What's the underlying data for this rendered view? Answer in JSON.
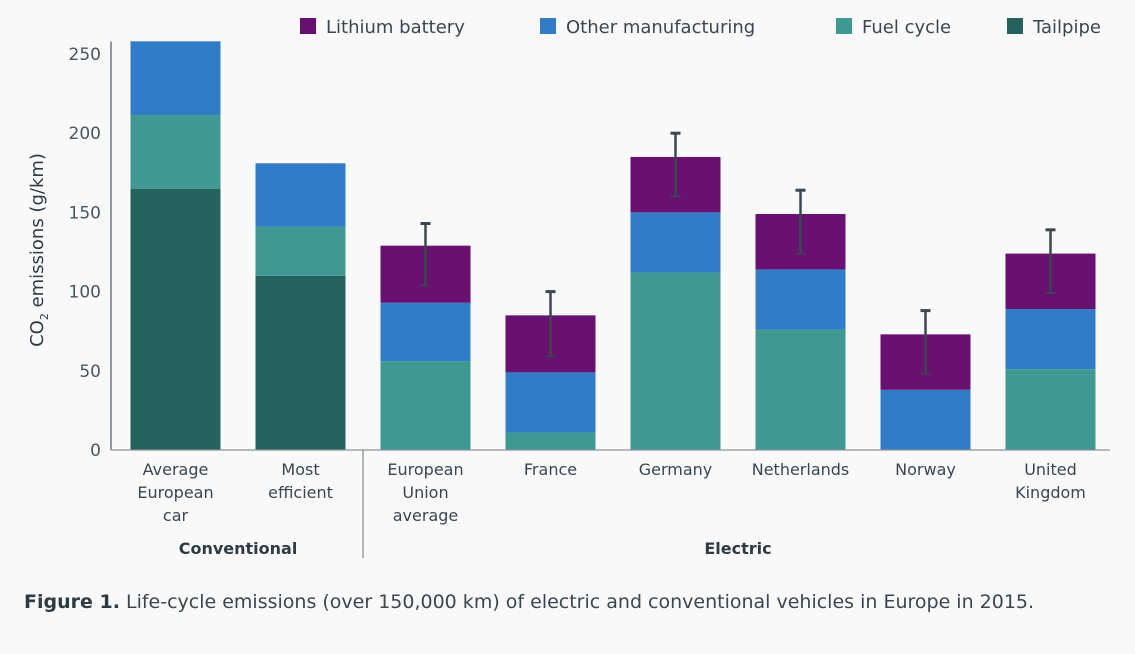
{
  "chart_data": {
    "type": "bar",
    "stacked": true,
    "ylabel_main": "CO",
    "ylabel_sub": "2",
    "ylabel_rest": " emissions (g/km)",
    "ylim": [
      0,
      258
    ],
    "yticks": [
      0,
      50,
      100,
      150,
      200,
      250
    ],
    "categories": [
      [
        "Average",
        "European",
        "car"
      ],
      [
        "Most",
        "efficient"
      ],
      [
        "European",
        "Union",
        "average"
      ],
      [
        "France"
      ],
      [
        "Germany"
      ],
      [
        "Netherlands"
      ],
      [
        "Norway"
      ],
      [
        "United",
        "Kingdom"
      ]
    ],
    "groups": [
      {
        "label": "Conventional",
        "span": [
          0,
          1
        ]
      },
      {
        "label": "Electric",
        "span": [
          2,
          7
        ]
      }
    ],
    "series": [
      {
        "name": "Tailpipe",
        "color": "#25625d",
        "values": [
          165,
          110,
          0,
          0,
          0,
          0,
          0,
          0
        ]
      },
      {
        "name": "Fuel cycle",
        "color": "#3f9892",
        "values": [
          46.5,
          31,
          56,
          11,
          112,
          76,
          0,
          51
        ]
      },
      {
        "name": "Other manufacturing",
        "color": "#327bc7",
        "values": [
          46.5,
          40,
          37,
          38,
          38,
          38,
          38,
          38
        ]
      },
      {
        "name": "Lithium battery",
        "color": "#681170",
        "values": [
          0,
          0,
          36,
          36,
          35,
          35,
          35,
          35
        ]
      }
    ],
    "error_bars": [
      null,
      null,
      [
        104,
        143
      ],
      [
        59,
        100
      ],
      [
        160,
        200
      ],
      [
        124,
        164
      ],
      [
        48,
        88
      ],
      [
        99,
        139
      ]
    ],
    "legend": [
      "Lithium battery",
      "Other manufacturing",
      "Fuel cycle",
      "Tailpipe"
    ],
    "legend_placement": "top-right",
    "grid": false
  },
  "caption": {
    "label": "Figure 1.",
    "text": " Life-cycle emissions (over 150,000 km) of electric and conventional vehicles in Europe in 2015."
  }
}
